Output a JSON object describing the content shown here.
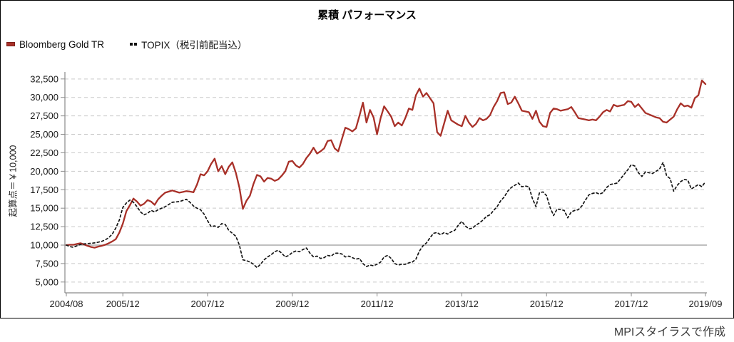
{
  "title": "累積 パフォーマンス",
  "caption": "MPIスタイラスで作成",
  "colors": {
    "gold_line": "#A83028",
    "topix_line": "#141414",
    "gridline": "#c9c9c9",
    "axis": "#8a8a8a",
    "baseline": "#999999",
    "border": "#000000"
  },
  "chart_data": {
    "type": "line",
    "title": "累積 パフォーマンス",
    "ylabel": "起算点＝￥10,000",
    "xlabel": "",
    "x_interval": "monthly",
    "x_start": "2004/08",
    "x_end": "2019/09",
    "xtick_labels": [
      "2004/08",
      "2005/12",
      "2007/12",
      "2009/12",
      "2011/12",
      "2013/12",
      "2015/12",
      "2017/12",
      "2019/09"
    ],
    "ytick_values": [
      5000,
      7500,
      10000,
      12500,
      15000,
      17500,
      20000,
      22500,
      25000,
      27500,
      30000,
      32500
    ],
    "ylim": [
      3600,
      33450
    ],
    "baseline_value": 10000,
    "grid": "horizontal-dashed",
    "legend_position": "top-left",
    "series": [
      {
        "name": "Bloomberg Gold TR",
        "color": "#A83028",
        "line_style": "solid",
        "start": "2004/08",
        "values": [
          10000,
          10050,
          10050,
          10150,
          10250,
          10100,
          9900,
          9750,
          9650,
          9800,
          9900,
          10050,
          10250,
          10500,
          10800,
          11700,
          12900,
          14600,
          15400,
          16300,
          15900,
          15350,
          15600,
          16100,
          15900,
          15450,
          16200,
          16700,
          17100,
          17250,
          17400,
          17250,
          17100,
          17200,
          17300,
          17250,
          17150,
          18200,
          19600,
          19450,
          20000,
          21000,
          21700,
          20000,
          20700,
          19600,
          20600,
          21200,
          19800,
          17800,
          14900,
          16000,
          16700,
          18300,
          19500,
          19300,
          18600,
          19100,
          19000,
          18700,
          18900,
          19400,
          20000,
          21300,
          21400,
          20800,
          20500,
          21000,
          21800,
          22400,
          23200,
          22400,
          22700,
          23100,
          24100,
          24200,
          23100,
          22700,
          24300,
          25900,
          25700,
          25400,
          25800,
          27500,
          29300,
          26600,
          28300,
          27300,
          25000,
          27200,
          28800,
          28100,
          27400,
          26100,
          26600,
          26200,
          27200,
          28500,
          28300,
          30300,
          31200,
          30100,
          30600,
          29900,
          29200,
          25300,
          24800,
          26500,
          28200,
          26900,
          26600,
          26300,
          26100,
          27500,
          26600,
          26000,
          26400,
          27200,
          26900,
          27100,
          27600,
          28700,
          29500,
          30600,
          30700,
          29100,
          29300,
          30100,
          29200,
          28200,
          28100,
          28000,
          27100,
          28200,
          26700,
          26100,
          26000,
          27900,
          28500,
          28400,
          28200,
          28300,
          28400,
          28700,
          28000,
          27200,
          27100,
          27000,
          26900,
          27000,
          26900,
          27400,
          28000,
          28300,
          28100,
          29000,
          28800,
          28900,
          29000,
          29500,
          29400,
          28700,
          29100,
          28500,
          27900,
          27700,
          27500,
          27300,
          27200,
          26700,
          26600,
          27000,
          27400,
          28400,
          29200,
          28800,
          28900,
          28600,
          29900,
          30300,
          32300,
          31800
        ]
      },
      {
        "name": "TOPIX（税引前配当込）",
        "color": "#141414",
        "line_style": "dotted",
        "start": "2004/08",
        "values": [
          10000,
          9800,
          9700,
          9900,
          10100,
          10150,
          10200,
          10250,
          10300,
          10400,
          10500,
          10700,
          11000,
          11500,
          12300,
          13400,
          15100,
          15700,
          16100,
          15800,
          15200,
          14500,
          14100,
          14300,
          14700,
          14500,
          14800,
          15000,
          15200,
          15500,
          15800,
          15850,
          15900,
          16050,
          16200,
          15800,
          15300,
          15000,
          14800,
          14200,
          13300,
          12500,
          12600,
          12400,
          12900,
          12800,
          12000,
          11600,
          11200,
          10000,
          8000,
          7900,
          7700,
          7400,
          6950,
          7400,
          8000,
          8400,
          8700,
          9100,
          9300,
          8900,
          8400,
          8600,
          9000,
          9200,
          9100,
          9400,
          9600,
          8900,
          8400,
          8500,
          8200,
          8300,
          8600,
          8500,
          8900,
          8900,
          8800,
          8400,
          8500,
          8300,
          8100,
          8200,
          7500,
          7100,
          7300,
          7200,
          7400,
          7700,
          8400,
          8600,
          8200,
          7500,
          7300,
          7400,
          7400,
          7600,
          7700,
          8100,
          9200,
          9900,
          10300,
          11000,
          11600,
          11700,
          11400,
          11700,
          11500,
          11800,
          12000,
          12700,
          13200,
          12600,
          12200,
          12300,
          12700,
          13000,
          13400,
          13900,
          14100,
          14700,
          15200,
          16000,
          16500,
          17300,
          17800,
          18100,
          18400,
          17900,
          18000,
          17900,
          16300,
          15200,
          17100,
          17200,
          16700,
          15100,
          14000,
          14900,
          14800,
          14700,
          13700,
          14500,
          14700,
          14800,
          15300,
          16100,
          16800,
          17000,
          17100,
          16900,
          17100,
          17800,
          18200,
          18300,
          18400,
          19000,
          19600,
          20200,
          20900,
          20700,
          19800,
          19300,
          19900,
          19800,
          19700,
          20000,
          20300,
          21200,
          19400,
          19000,
          17300,
          18100,
          18600,
          18900,
          18800,
          17600,
          17900,
          18200,
          17900,
          18600
        ]
      }
    ]
  }
}
